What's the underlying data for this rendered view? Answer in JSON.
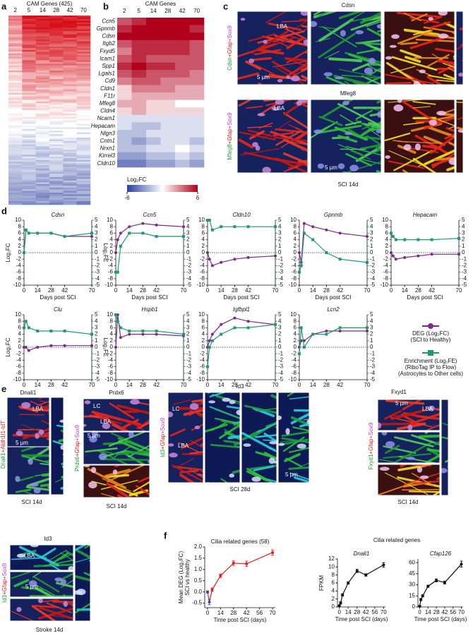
{
  "panel_labels": [
    "a",
    "b",
    "c",
    "d",
    "e",
    "f"
  ],
  "panel_a": {
    "title": "CAM Genes (425)",
    "columns": [
      "2",
      "5",
      "14",
      "28",
      "42",
      "70"
    ]
  },
  "panel_c": {
    "row1_title": "Cdsn",
    "row1_stain": [
      "Cdsn",
      "+Gfap",
      "+Sox9"
    ],
    "row2_title": "Mfeg8",
    "row2_stain": [
      "Mfeg8",
      "+Gfap",
      "+Sox9"
    ],
    "region": "LBA",
    "scale": "5 µm",
    "condition": "SCI 14d"
  },
  "panel_e": {
    "dnali1": {
      "title": "Dnali1",
      "stain": [
        "Dnali1",
        "+Aldh1l1-tdT"
      ],
      "region": "LBA",
      "scale": "5 µm",
      "condition": "SCI 14d"
    },
    "prdx6": {
      "title": "Prdx6",
      "stain": [
        "Prdx6",
        "+Gfap",
        "+Sox9"
      ],
      "regions": [
        "LC",
        "LBA"
      ],
      "scale": "5 µm",
      "condition": "SCI 14d"
    },
    "id3_sci": {
      "title": "Id3",
      "stain": [
        "Id3",
        "+Gfap",
        "+Sox9"
      ],
      "regions": [
        "LC",
        "LBA"
      ],
      "scale": "5 µm",
      "condition": "SCI 28d"
    },
    "fxyd1": {
      "title": "Fxyd1",
      "stain": [
        "Fxyd1",
        "+Gfap",
        "+Sox9"
      ],
      "region": "LBA",
      "scale": "5 µm",
      "condition": "SCI 14d"
    },
    "id3_stroke": {
      "title": "Id3",
      "stain": [
        "Id3",
        "+Gfap",
        "+Sox9"
      ],
      "region": "LBA",
      "scale": "5 µm",
      "condition": "Stroke 14d"
    }
  },
  "legend_d": {
    "deg": [
      "DEG (Log₂FC)",
      "(SCI to Healthy)"
    ],
    "enrich": [
      "Enrichment (Log₂FE)",
      "(RiboTag IP to Flow)",
      "(Astrocytes to Other cells)"
    ]
  },
  "panel_f": {
    "group_title": "Cilia related genes"
  },
  "chart_data": [
    {
      "type": "heatmap",
      "title": "CAM Genes",
      "categories": [
        2,
        5,
        14,
        28,
        42,
        70
      ],
      "rows": [
        "Ccn5",
        "Gpnmb",
        "Cdsn",
        "Itgb2",
        "Fxyd5",
        "Icam1",
        "Spp1",
        "Lgals1",
        "Cd9",
        "Cldn1",
        "F11r",
        "Mfeg8",
        "Cldn4",
        "Ncam1",
        "Hepacam",
        "Nlgn3",
        "Cntn1",
        "Nrxn1",
        "Kirrel3",
        "Cldn10"
      ],
      "values": [
        [
          4,
          5,
          6,
          6,
          6,
          6
        ],
        [
          5,
          6,
          6,
          6,
          6,
          5
        ],
        [
          6,
          6,
          6,
          6,
          6,
          6
        ],
        [
          4,
          5,
          5,
          5,
          5,
          4
        ],
        [
          3,
          5,
          5,
          5,
          5,
          4
        ],
        [
          4,
          5,
          4,
          4,
          4,
          4
        ],
        [
          5,
          6,
          5,
          5,
          4,
          4
        ],
        [
          4,
          5,
          4,
          4,
          4,
          3
        ],
        [
          3,
          4,
          4,
          3,
          3,
          3
        ],
        [
          1,
          3,
          3,
          3,
          2,
          2
        ],
        [
          1,
          2,
          2,
          2,
          2,
          2
        ],
        [
          2,
          2,
          1,
          1,
          0,
          0
        ],
        [
          1,
          2,
          1,
          1,
          1,
          1
        ],
        [
          -1,
          -1,
          -1,
          -1,
          -1,
          -1
        ],
        [
          -1,
          -2,
          -2,
          -1,
          -1,
          -1
        ],
        [
          -2,
          -2,
          -1,
          -1,
          -1,
          -1
        ],
        [
          -2,
          -3,
          -2,
          -1,
          -1,
          -2
        ],
        [
          -2,
          -2,
          -1,
          -1,
          0,
          -1
        ],
        [
          -3,
          -3,
          -2,
          -2,
          -1,
          -2
        ],
        [
          -4,
          -4,
          -3,
          -3,
          -2,
          -3
        ]
      ],
      "zlim": [
        -6,
        6
      ],
      "zticks": [
        -6,
        6
      ],
      "colorbar_label": "Log₂FC",
      "low_color": "#2a3ea0",
      "high_color": "#b0001c"
    },
    {
      "type": "line",
      "title": "Cdsn",
      "ylabel": "Log₂FC",
      "y2label": "Log₂FE",
      "xlabel": "Days post SCI",
      "x": [
        0,
        2,
        5,
        14,
        28,
        42,
        70
      ],
      "xlim": [
        0,
        70
      ],
      "xticks": [
        0,
        14,
        28,
        42,
        70
      ],
      "ylim": [
        -10,
        10
      ],
      "yticks": [
        -10,
        -8,
        -6,
        -4,
        -2,
        0,
        2,
        4,
        6,
        8,
        10
      ],
      "y2lim": [
        -5,
        5
      ],
      "y2ticks": [
        -5,
        -4,
        -3,
        -2,
        -1,
        0,
        1,
        2,
        3,
        4,
        5
      ],
      "zero_line": true,
      "series": [
        {
          "color": "#7b2a8c",
          "values": [
            0,
            7,
            6,
            6,
            6,
            5,
            5
          ]
        },
        {
          "color": "#1e9a6e",
          "axis": "y2",
          "values": [
            0,
            3.5,
            3,
            3,
            3,
            2.5,
            3
          ]
        }
      ]
    },
    {
      "type": "line",
      "title": "Ccn5",
      "xlabel": "Days post SCI",
      "x": [
        0,
        2,
        5,
        14,
        28,
        42,
        70
      ],
      "xlim": [
        0,
        70
      ],
      "xticks": [
        0,
        14,
        28,
        42,
        70
      ],
      "ylim": [
        -10,
        10
      ],
      "yticks": [
        -10,
        -8,
        -6,
        -4,
        -2,
        0,
        2,
        4,
        6,
        8,
        10
      ],
      "y2lim": [
        -5,
        5
      ],
      "y2ticks": [
        -5,
        -4,
        -3,
        -2,
        -1,
        0,
        1,
        2,
        3,
        4,
        5
      ],
      "zero_line": true,
      "series": [
        {
          "color": "#7b2a8c",
          "values": [
            0,
            4,
            6,
            8,
            9,
            8.5,
            8
          ]
        },
        {
          "color": "#1e9a6e",
          "axis": "y2",
          "values": [
            -3,
            -3,
            1,
            3,
            3,
            2.5,
            2.5
          ]
        }
      ]
    },
    {
      "type": "line",
      "title": "Cldn10",
      "xlabel": "Days post SCI",
      "x": [
        0,
        2,
        5,
        14,
        28,
        42,
        70
      ],
      "xlim": [
        0,
        70
      ],
      "xticks": [
        0,
        14,
        28,
        42,
        70
      ],
      "ylim": [
        -10,
        10
      ],
      "yticks": [
        -10,
        -8,
        -6,
        -4,
        -2,
        0,
        2,
        4,
        6,
        8,
        10
      ],
      "y2lim": [
        -5,
        5
      ],
      "y2ticks": [
        -5,
        -4,
        -3,
        -2,
        -1,
        0,
        1,
        2,
        3,
        4,
        5
      ],
      "zero_line": true,
      "series": [
        {
          "color": "#7b2a8c",
          "values": [
            0,
            -2,
            -4,
            -3,
            -2,
            -1.5,
            -1
          ]
        },
        {
          "color": "#1e9a6e",
          "axis": "y2",
          "values": [
            5,
            5,
            3.5,
            4,
            4,
            4,
            4
          ]
        }
      ]
    },
    {
      "type": "line",
      "title": "Gpnmb",
      "xlabel": "Days post SCI",
      "x": [
        0,
        2,
        5,
        14,
        28,
        42,
        70
      ],
      "xlim": [
        0,
        70
      ],
      "xticks": [
        0,
        14,
        28,
        42,
        70
      ],
      "ylim": [
        -10,
        10
      ],
      "yticks": [
        -10,
        -8,
        -6,
        -4,
        -2,
        0,
        2,
        4,
        6,
        8,
        10
      ],
      "y2lim": [
        -5,
        5
      ],
      "y2ticks": [
        -5,
        -4,
        -3,
        -2,
        -1,
        0,
        1,
        2,
        3,
        4,
        5
      ],
      "zero_line": true,
      "series": [
        {
          "color": "#7b2a8c",
          "values": [
            0,
            -3,
            9,
            8,
            7,
            6,
            5
          ]
        },
        {
          "color": "#1e9a6e",
          "axis": "y2",
          "values": [
            -3,
            -2,
            3,
            2,
            0,
            -1,
            -1.5
          ]
        }
      ]
    },
    {
      "type": "line",
      "title": "Hepacam",
      "xlabel": "Days post SCI",
      "x": [
        0,
        2,
        5,
        14,
        28,
        42,
        70
      ],
      "xlim": [
        0,
        70
      ],
      "xticks": [
        0,
        14,
        28,
        42,
        70
      ],
      "ylim": [
        -10,
        10
      ],
      "yticks": [
        -10,
        -8,
        -6,
        -4,
        -2,
        0,
        2,
        4,
        6,
        8,
        10
      ],
      "y2lim": [
        -5,
        5
      ],
      "y2ticks": [
        -5,
        -4,
        -3,
        -2,
        -1,
        0,
        1,
        2,
        3,
        4,
        5
      ],
      "zero_line": true,
      "series": [
        {
          "color": "#7b2a8c",
          "values": [
            0,
            -1,
            -2,
            -1.5,
            -1,
            -0.5,
            -0.5
          ]
        },
        {
          "color": "#1e9a6e",
          "axis": "y2",
          "values": [
            3,
            2.5,
            2,
            2,
            2,
            2,
            2.2
          ]
        }
      ]
    },
    {
      "type": "line",
      "title": "Clu",
      "ylabel": "Log₂FC",
      "y2label": "Log₂FE",
      "x": [
        0,
        2,
        5,
        14,
        28,
        42,
        70
      ],
      "xlim": [
        0,
        70
      ],
      "xticks": [
        0,
        14,
        28,
        42,
        70
      ],
      "ylim": [
        -10,
        10
      ],
      "yticks": [
        -10,
        -8,
        -6,
        -4,
        -2,
        0,
        2,
        4,
        6,
        8,
        10
      ],
      "y2lim": [
        -5,
        5
      ],
      "y2ticks": [
        -5,
        -4,
        -3,
        -2,
        -1,
        0,
        1,
        2,
        3,
        4,
        5
      ],
      "zero_line": true,
      "series": [
        {
          "color": "#7b2a8c",
          "values": [
            0,
            0,
            -1,
            0,
            0.5,
            0.5,
            0.5
          ]
        },
        {
          "color": "#1e9a6e",
          "axis": "y2",
          "values": [
            3,
            4,
            3,
            2.5,
            2.5,
            2.5,
            2
          ]
        }
      ]
    },
    {
      "type": "line",
      "title": "Hspb1",
      "x": [
        0,
        2,
        5,
        14,
        28,
        42,
        70
      ],
      "xlim": [
        0,
        70
      ],
      "xticks": [
        0,
        14,
        28,
        42,
        70
      ],
      "ylim": [
        -10,
        10
      ],
      "yticks": [
        -10,
        -8,
        -6,
        -4,
        -2,
        0,
        2,
        4,
        6,
        8,
        10
      ],
      "y2lim": [
        -5,
        5
      ],
      "y2ticks": [
        -5,
        -4,
        -3,
        -2,
        -1,
        0,
        1,
        2,
        3,
        4,
        5
      ],
      "zero_line": true,
      "series": [
        {
          "color": "#7b2a8c",
          "values": [
            0,
            10,
            3,
            4,
            4,
            4,
            3.5
          ]
        },
        {
          "color": "#1e9a6e",
          "axis": "y2",
          "values": [
            5,
            4,
            3,
            2.5,
            2.5,
            2.5,
            2
          ]
        }
      ]
    },
    {
      "type": "line",
      "title": "Igfbpl1",
      "x": [
        0,
        2,
        5,
        14,
        28,
        42,
        70
      ],
      "xlim": [
        0,
        70
      ],
      "xticks": [
        0,
        14,
        28,
        42,
        70
      ],
      "ylim": [
        -10,
        10
      ],
      "yticks": [
        -10,
        -8,
        -6,
        -4,
        -2,
        0,
        2,
        4,
        6,
        8,
        10
      ],
      "y2lim": [
        -5,
        5
      ],
      "y2ticks": [
        -5,
        -4,
        -3,
        -2,
        -1,
        0,
        1,
        2,
        3,
        4,
        5
      ],
      "zero_line": true,
      "series": [
        {
          "color": "#7b2a8c",
          "values": [
            0,
            2,
            4,
            7,
            9,
            8,
            7
          ]
        },
        {
          "color": "#1e9a6e",
          "axis": "y2",
          "values": [
            -3,
            0,
            1,
            2,
            3,
            3,
            3.5
          ]
        }
      ]
    },
    {
      "type": "line",
      "title": "Lcn2",
      "x": [
        0,
        2,
        5,
        14,
        28,
        42,
        70
      ],
      "xlim": [
        0,
        70
      ],
      "xticks": [
        0,
        14,
        28,
        42,
        70
      ],
      "ylim": [
        -10,
        10
      ],
      "yticks": [
        -10,
        -8,
        -6,
        -4,
        -2,
        0,
        2,
        4,
        6,
        8,
        10
      ],
      "y2lim": [
        -5,
        5
      ],
      "y2ticks": [
        -5,
        -4,
        -3,
        -2,
        -1,
        0,
        1,
        2,
        3,
        4,
        5
      ],
      "zero_line": true,
      "series": [
        {
          "color": "#7b2a8c",
          "values": [
            0,
            2,
            2,
            4,
            5,
            5,
            5
          ]
        },
        {
          "color": "#1e9a6e",
          "axis": "y2",
          "values": [
            -1,
            3,
            0,
            2,
            2,
            3,
            3
          ]
        }
      ]
    },
    {
      "type": "line",
      "title": "Cilia related genes (58)",
      "ylabel": [
        "Mean DEG (Log₂FC)",
        "SCI vs healthy"
      ],
      "xlabel": "Time post SCI (days)",
      "x": [
        0,
        2,
        5,
        14,
        28,
        42,
        70
      ],
      "xlim": [
        -3,
        73
      ],
      "xticks": [
        0,
        14,
        28,
        42,
        56,
        70
      ],
      "ylim": [
        -0.7,
        2.0
      ],
      "yticks": [
        -0.5,
        {
          "value": 0,
          "label": "0.0"
        },
        0.5,
        {
          "value": 1,
          "label": "1.0"
        },
        1.5,
        {
          "value": 2,
          "label": "2.0"
        }
      ],
      "series": [
        {
          "color": "#e02020",
          "values": [
            0,
            -0.45,
            0.1,
            0.72,
            1.28,
            1.25,
            1.75
          ],
          "errors": [
            0.05,
            0.12,
            0.08,
            0.08,
            0.1,
            0.12,
            0.12
          ],
          "point_colors": [
            "#2a46c8",
            "#2a46c8",
            "#e02020",
            "#e02020",
            "#e02020",
            "#e02020",
            "#e02020"
          ]
        }
      ]
    },
    {
      "type": "line",
      "title": "Dnali1",
      "ylabel": "FPKM",
      "xlabel": "Time post SCI (days)",
      "x": [
        0,
        2,
        5,
        14,
        28,
        42,
        70
      ],
      "xlim": [
        -3,
        73
      ],
      "xticks": [
        0,
        14,
        28,
        42,
        56,
        70
      ],
      "ylim": [
        0,
        12
      ],
      "yticks": [
        0,
        2,
        4,
        6,
        8,
        10,
        12
      ],
      "series": [
        {
          "color": "#111111",
          "values": [
            0.3,
            1,
            3,
            6,
            9,
            8,
            10.5
          ],
          "errors": [
            0.2,
            0.3,
            0.3,
            0.3,
            0.4,
            0.3,
            0.6
          ]
        }
      ]
    },
    {
      "type": "line",
      "title": "Cfap126",
      "xlabel": "Time post SCI (days)",
      "x": [
        0,
        2,
        5,
        14,
        28,
        42,
        70
      ],
      "xlim": [
        -3,
        73
      ],
      "xticks": [
        0,
        14,
        28,
        42,
        56,
        70
      ],
      "ylim": [
        0,
        65
      ],
      "yticks": [
        0,
        15,
        30,
        45,
        60
      ],
      "series": [
        {
          "color": "#111111",
          "values": [
            1,
            10,
            15,
            28,
            36,
            33,
            58
          ],
          "errors": [
            1,
            1.5,
            1.5,
            1.5,
            2,
            2,
            4
          ]
        }
      ]
    }
  ]
}
